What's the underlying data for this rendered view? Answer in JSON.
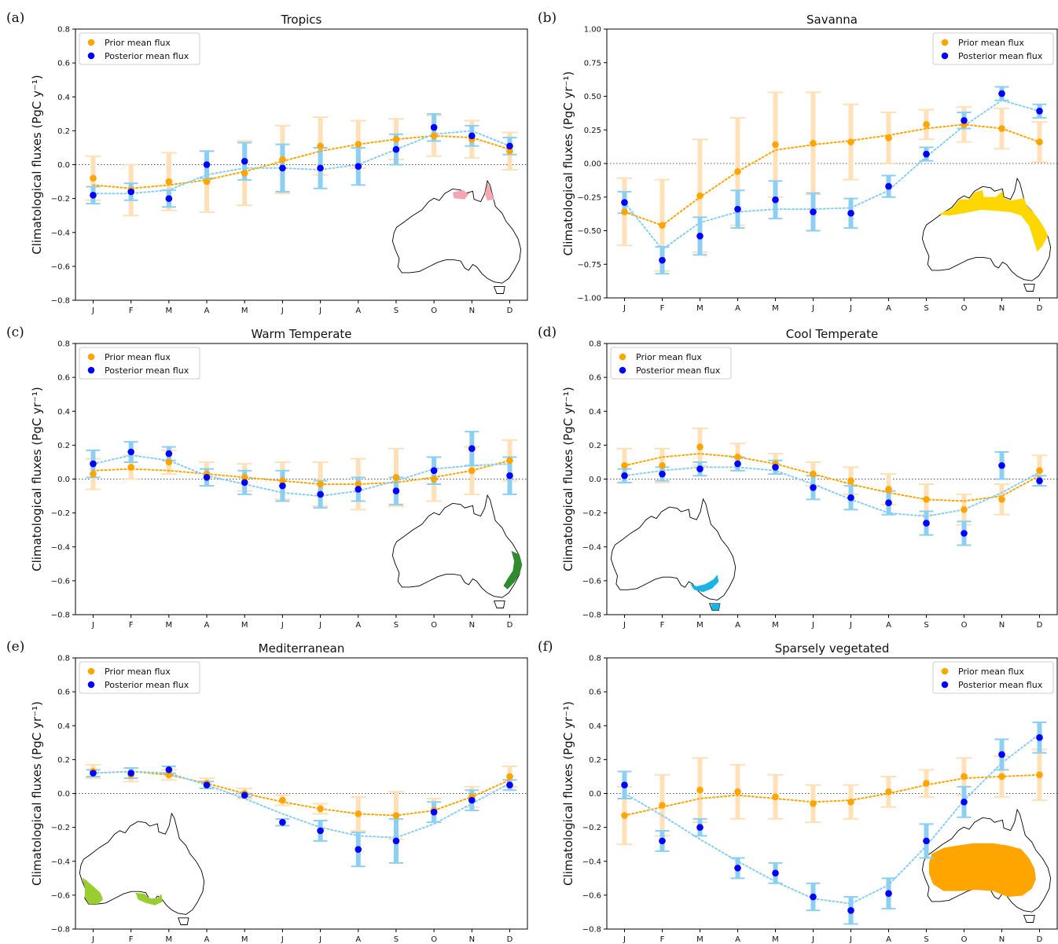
{
  "figure": {
    "colors": {
      "prior": "#ffa500",
      "prior_error": "#ffe0b8",
      "posterior": "#0000ff",
      "posterior_error": "#8ccff2",
      "posterior_line": "#87cefa",
      "zero_line": "#555555"
    }
  },
  "chart_data": [
    {
      "type": "scatter",
      "panel": "(a)",
      "title": "Tropics",
      "ylabel": "Climatological fluxes (PgC y⁻¹)",
      "xlabel": "",
      "categories": [
        "J",
        "F",
        "M",
        "A",
        "M",
        "J",
        "J",
        "A",
        "S",
        "O",
        "N",
        "D"
      ],
      "ylim": [
        -0.8,
        0.8
      ],
      "yticks": [
        -0.8,
        -0.6,
        -0.4,
        -0.2,
        0.0,
        0.2,
        0.4,
        0.6,
        0.8
      ],
      "legend_position": "top-left",
      "inset_map": "bottom-right",
      "map_region_color": "#f4a6b4",
      "map_region": "tropics",
      "series": [
        {
          "name": "Prior mean flux",
          "values": [
            -0.08,
            -0.15,
            -0.1,
            -0.1,
            -0.05,
            0.03,
            0.11,
            0.12,
            0.15,
            0.17,
            0.15,
            0.08
          ],
          "error": [
            0.13,
            0.15,
            0.17,
            0.18,
            0.19,
            0.2,
            0.17,
            0.14,
            0.12,
            0.12,
            0.11,
            0.11
          ],
          "trend": [
            -0.12,
            -0.14,
            -0.12,
            -0.09,
            -0.04,
            0.02,
            0.08,
            0.12,
            0.15,
            0.17,
            0.16,
            0.09
          ]
        },
        {
          "name": "Posterior mean flux",
          "values": [
            -0.18,
            -0.16,
            -0.2,
            0.0,
            0.02,
            -0.02,
            -0.02,
            -0.01,
            0.09,
            0.22,
            0.17,
            0.11
          ],
          "error": [
            0.05,
            0.05,
            0.05,
            0.08,
            0.11,
            0.14,
            0.12,
            0.11,
            0.09,
            0.08,
            0.06,
            0.05
          ],
          "trend": [
            -0.17,
            -0.17,
            -0.15,
            -0.06,
            -0.02,
            -0.02,
            -0.03,
            0.0,
            0.09,
            0.18,
            0.2,
            0.11
          ]
        }
      ]
    },
    {
      "type": "scatter",
      "panel": "(b)",
      "title": "Savanna",
      "ylabel": "Climatological fluxes (PgC yr⁻¹)",
      "xlabel": "",
      "categories": [
        "J",
        "F",
        "M",
        "A",
        "M",
        "J",
        "J",
        "A",
        "S",
        "O",
        "N",
        "D"
      ],
      "ylim": [
        -1.0,
        1.0
      ],
      "yticks": [
        -1.0,
        -0.75,
        -0.5,
        -0.25,
        0.0,
        0.25,
        0.5,
        0.75,
        1.0
      ],
      "legend_position": "top-right",
      "inset_map": "bottom-right",
      "map_region_color": "#ffd700",
      "map_region": "savanna",
      "series": [
        {
          "name": "Prior mean flux",
          "values": [
            -0.36,
            -0.46,
            -0.24,
            -0.06,
            0.14,
            0.15,
            0.16,
            0.19,
            0.29,
            0.29,
            0.26,
            0.16
          ],
          "error": [
            0.25,
            0.34,
            0.42,
            0.4,
            0.39,
            0.38,
            0.28,
            0.19,
            0.11,
            0.13,
            0.15,
            0.15
          ],
          "trend": [
            -0.36,
            -0.46,
            -0.25,
            -0.06,
            0.1,
            0.14,
            0.17,
            0.21,
            0.26,
            0.29,
            0.26,
            0.16
          ]
        },
        {
          "name": "Posterior mean flux",
          "values": [
            -0.29,
            -0.72,
            -0.54,
            -0.34,
            -0.27,
            -0.36,
            -0.37,
            -0.17,
            0.07,
            0.32,
            0.52,
            0.39
          ],
          "error": [
            0.08,
            0.1,
            0.14,
            0.14,
            0.14,
            0.14,
            0.11,
            0.08,
            0.05,
            0.06,
            0.05,
            0.05
          ],
          "trend": [
            -0.29,
            -0.64,
            -0.44,
            -0.36,
            -0.34,
            -0.34,
            -0.33,
            -0.2,
            0.05,
            0.28,
            0.47,
            0.39
          ]
        }
      ]
    },
    {
      "type": "scatter",
      "panel": "(c)",
      "title": "Warm Temperate",
      "ylabel": "Climatological fluxes (PgC yr⁻¹)",
      "xlabel": "",
      "categories": [
        "J",
        "F",
        "M",
        "A",
        "M",
        "J",
        "J",
        "A",
        "S",
        "O",
        "N",
        "D"
      ],
      "ylim": [
        -0.8,
        0.8
      ],
      "yticks": [
        -0.8,
        -0.6,
        -0.4,
        -0.2,
        0.0,
        0.2,
        0.4,
        0.6,
        0.8
      ],
      "legend_position": "top-left",
      "inset_map": "bottom-right",
      "map_region_color": "#2e8b2e",
      "map_region": "warm",
      "series": [
        {
          "name": "Prior mean flux",
          "values": [
            0.03,
            0.07,
            0.1,
            0.03,
            0.01,
            -0.01,
            -0.03,
            -0.03,
            0.01,
            0.0,
            0.05,
            0.11
          ],
          "error": [
            0.09,
            0.07,
            0.07,
            0.07,
            0.08,
            0.11,
            0.13,
            0.15,
            0.17,
            0.13,
            0.14,
            0.12
          ],
          "trend": [
            0.05,
            0.06,
            0.05,
            0.03,
            0.01,
            -0.01,
            -0.03,
            -0.03,
            -0.02,
            0.01,
            0.05,
            0.11
          ]
        },
        {
          "name": "Posterior mean flux",
          "values": [
            0.09,
            0.16,
            0.15,
            0.01,
            -0.02,
            -0.04,
            -0.09,
            -0.06,
            -0.07,
            0.05,
            0.18,
            0.02
          ],
          "error": [
            0.08,
            0.06,
            0.04,
            0.05,
            0.07,
            0.09,
            0.08,
            0.07,
            0.08,
            0.08,
            0.1,
            0.11
          ],
          "trend": [
            0.09,
            0.14,
            0.11,
            0.02,
            -0.03,
            -0.08,
            -0.1,
            -0.07,
            -0.01,
            0.06,
            0.08,
            0.09
          ]
        }
      ]
    },
    {
      "type": "scatter",
      "panel": "(d)",
      "title": "Cool Temperate",
      "ylabel": "Climatological fluxes (PgC yr⁻¹)",
      "xlabel": "",
      "categories": [
        "J",
        "F",
        "M",
        "A",
        "M",
        "J",
        "J",
        "A",
        "S",
        "O",
        "N",
        "D"
      ],
      "ylim": [
        -0.8,
        0.8
      ],
      "yticks": [
        -0.8,
        -0.6,
        -0.4,
        -0.2,
        0.0,
        0.2,
        0.4,
        0.6,
        0.8
      ],
      "legend_position": "top-left",
      "inset_map": "bottom-left",
      "map_region_color": "#19b4e6",
      "map_region": "cool",
      "series": [
        {
          "name": "Prior mean flux",
          "values": [
            0.08,
            0.08,
            0.19,
            0.13,
            0.09,
            0.03,
            -0.01,
            -0.06,
            -0.12,
            -0.18,
            -0.12,
            0.05
          ],
          "error": [
            0.1,
            0.1,
            0.11,
            0.08,
            0.06,
            0.07,
            0.08,
            0.09,
            0.09,
            0.09,
            0.09,
            0.09
          ],
          "trend": [
            0.08,
            0.13,
            0.15,
            0.13,
            0.09,
            0.03,
            -0.03,
            -0.08,
            -0.12,
            -0.13,
            -0.1,
            0.02
          ]
        },
        {
          "name": "Posterior mean flux",
          "values": [
            0.02,
            0.03,
            0.06,
            0.09,
            0.07,
            -0.05,
            -0.11,
            -0.14,
            -0.26,
            -0.32,
            0.08,
            -0.01
          ],
          "error": [
            0.04,
            0.04,
            0.04,
            0.04,
            0.04,
            0.07,
            0.07,
            0.07,
            0.07,
            0.07,
            0.08,
            0.03
          ],
          "trend": [
            0.02,
            0.05,
            0.07,
            0.07,
            0.05,
            -0.03,
            -0.12,
            -0.2,
            -0.22,
            -0.18,
            -0.08,
            0.04
          ]
        }
      ]
    },
    {
      "type": "scatter",
      "panel": "(e)",
      "title": "Mediterranean",
      "ylabel": "Climatological fluxes (PgC yr⁻¹)",
      "xlabel": "",
      "categories": [
        "J",
        "F",
        "M",
        "A",
        "M",
        "J",
        "J",
        "A",
        "S",
        "O",
        "N",
        "D"
      ],
      "ylim": [
        -0.8,
        0.8
      ],
      "yticks": [
        -0.8,
        -0.6,
        -0.4,
        -0.2,
        0.0,
        0.2,
        0.4,
        0.6,
        0.8
      ],
      "legend_position": "top-left",
      "inset_map": "bottom-left",
      "map_region_color": "#9acd32",
      "map_region": "med",
      "series": [
        {
          "name": "Prior mean flux",
          "values": [
            0.13,
            0.11,
            0.11,
            0.06,
            0.0,
            -0.04,
            -0.09,
            -0.12,
            -0.13,
            -0.1,
            -0.02,
            0.1
          ],
          "error": [
            0.04,
            0.04,
            0.03,
            0.03,
            0.03,
            0.03,
            0.03,
            0.1,
            0.14,
            0.07,
            0.06,
            0.06
          ],
          "trend": [
            0.12,
            0.13,
            0.11,
            0.06,
            0.0,
            -0.05,
            -0.09,
            -0.12,
            -0.13,
            -0.1,
            -0.02,
            0.08
          ]
        },
        {
          "name": "Posterior mean flux",
          "values": [
            0.12,
            0.12,
            0.14,
            0.05,
            -0.01,
            -0.17,
            -0.22,
            -0.33,
            -0.28,
            -0.11,
            -0.04,
            0.05
          ],
          "error": [
            0.02,
            0.03,
            0.02,
            0.02,
            0.01,
            0.02,
            0.06,
            0.1,
            0.13,
            0.06,
            0.06,
            0.03
          ],
          "trend": [
            0.12,
            0.13,
            0.12,
            0.05,
            -0.03,
            -0.12,
            -0.2,
            -0.25,
            -0.26,
            -0.18,
            -0.06,
            0.06
          ]
        }
      ]
    },
    {
      "type": "scatter",
      "panel": "(f)",
      "title": "Sparsely vegetated",
      "ylabel": "Climatological fluxes (PgC yr⁻¹)",
      "xlabel": "",
      "categories": [
        "J",
        "F",
        "M",
        "A",
        "M",
        "J",
        "J",
        "A",
        "S",
        "O",
        "N",
        "D"
      ],
      "ylim": [
        -0.8,
        0.8
      ],
      "yticks": [
        -0.8,
        -0.6,
        -0.4,
        -0.2,
        0.0,
        0.2,
        0.4,
        0.6,
        0.8
      ],
      "legend_position": "top-right",
      "inset_map": "bottom-right",
      "map_region_color": "#ffa500",
      "map_region": "sparse",
      "series": [
        {
          "name": "Prior mean flux",
          "values": [
            -0.13,
            -0.07,
            0.02,
            0.01,
            -0.02,
            -0.06,
            -0.05,
            0.01,
            0.06,
            0.1,
            0.1,
            0.11
          ],
          "error": [
            0.17,
            0.18,
            0.19,
            0.16,
            0.13,
            0.11,
            0.1,
            0.09,
            0.08,
            0.11,
            0.12,
            0.15
          ],
          "trend": [
            -0.13,
            -0.08,
            -0.03,
            -0.01,
            -0.03,
            -0.05,
            -0.04,
            0.0,
            0.05,
            0.09,
            0.1,
            0.11
          ]
        },
        {
          "name": "Posterior mean flux",
          "values": [
            0.05,
            -0.28,
            -0.2,
            -0.44,
            -0.47,
            -0.61,
            -0.69,
            -0.59,
            -0.28,
            -0.05,
            0.23,
            0.33
          ],
          "error": [
            0.08,
            0.06,
            0.05,
            0.06,
            0.06,
            0.08,
            0.08,
            0.09,
            0.1,
            0.09,
            0.09,
            0.09
          ],
          "trend": [
            0.0,
            -0.13,
            -0.27,
            -0.4,
            -0.52,
            -0.62,
            -0.65,
            -0.54,
            -0.31,
            -0.04,
            0.18,
            0.35
          ]
        }
      ]
    }
  ]
}
